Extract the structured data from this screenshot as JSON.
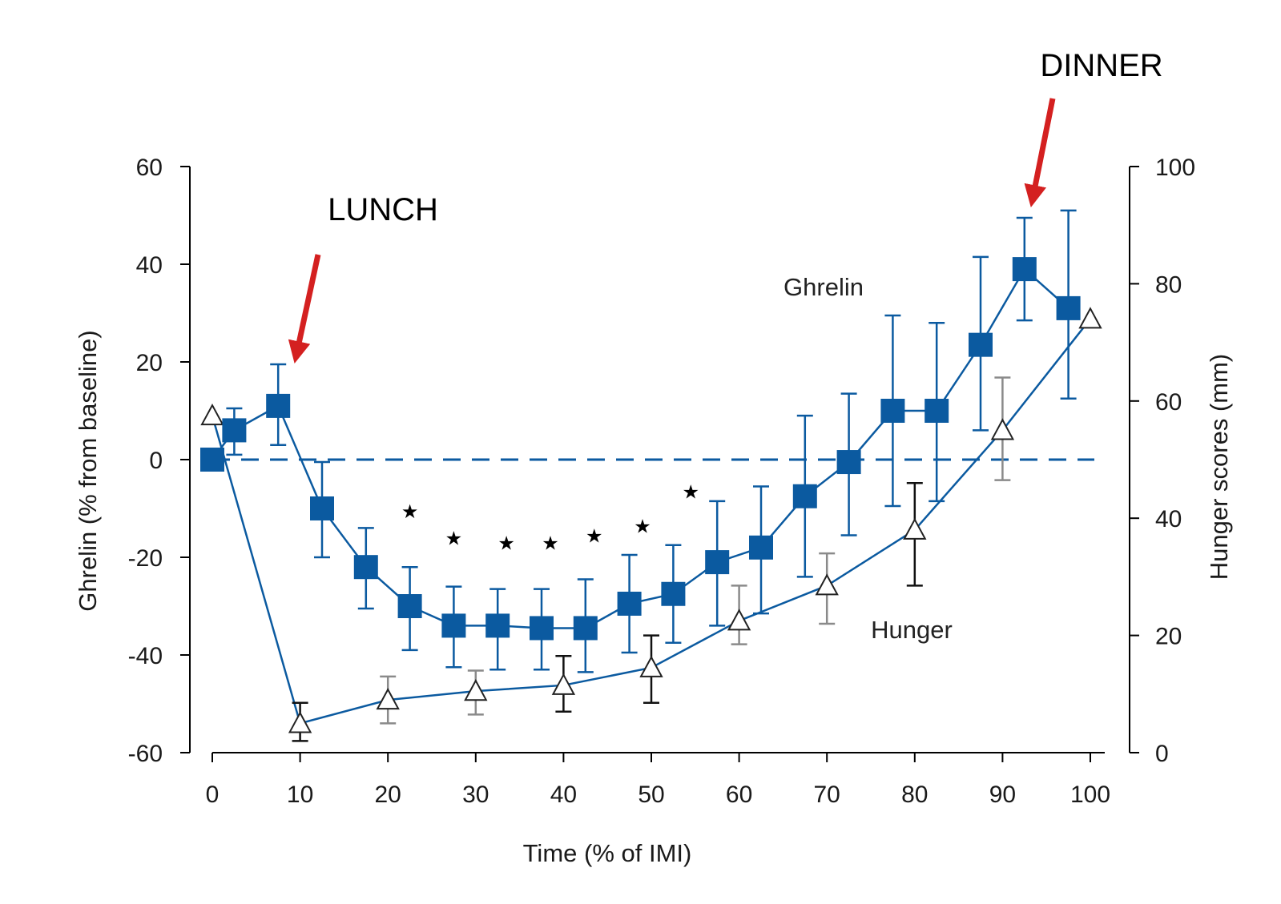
{
  "chart_data": {
    "type": "line",
    "xlabel": "Time (% of IMI)",
    "ylabel_left": "Ghrelin (% from baseline)",
    "ylabel_right": "Hunger scores (mm)",
    "x_ticks": [
      "0",
      "10",
      "20",
      "30",
      "40",
      "50",
      "60",
      "70",
      "80",
      "90",
      "100"
    ],
    "y_left_ticks": [
      "60",
      "40",
      "20",
      "0",
      "-20",
      "-40",
      "-60"
    ],
    "y_right_ticks": [
      "100",
      "80",
      "60",
      "40",
      "20",
      "0"
    ],
    "xlim": [
      0,
      100
    ],
    "ylim_left": [
      -60,
      60
    ],
    "ylim_right": [
      0,
      100
    ],
    "baseline_dashed": 0,
    "series": [
      {
        "name": "Ghrelin",
        "axis": "left",
        "marker": "filled-square",
        "color": "#0b5aa0",
        "x": [
          0,
          2.5,
          7.5,
          12.5,
          17.5,
          22.5,
          27.5,
          32.5,
          37.5,
          42.5,
          47.5,
          52.5,
          57.5,
          62.5,
          67.5,
          72.5,
          77.5,
          82.5,
          87.5,
          92.5,
          97.5
        ],
        "y": [
          0,
          6,
          11,
          -10,
          -22,
          -30,
          -34,
          -34,
          -34.5,
          -34.5,
          -29.5,
          -27.5,
          -21,
          -18,
          -7.5,
          -0.5,
          10,
          10,
          23.5,
          39,
          31
        ],
        "err_high": [
          0,
          10.5,
          19.5,
          -0.5,
          -14,
          -22,
          -26,
          -26.5,
          -26.5,
          -24.5,
          -19.5,
          -17.5,
          -8.5,
          -5.5,
          9,
          13.5,
          29.5,
          28,
          41.5,
          49.5,
          51
        ],
        "err_low": [
          0,
          1,
          3,
          -20,
          -30.5,
          -39,
          -42.5,
          -43,
          -43,
          -43.5,
          -39.5,
          -37.5,
          -34,
          -31.5,
          -24,
          -15.5,
          -9.5,
          -8.5,
          6,
          28.5,
          12.5
        ]
      },
      {
        "name": "Hunger",
        "axis": "right",
        "marker": "open-triangle",
        "color": "#0b5aa0",
        "x": [
          0,
          10,
          20,
          30,
          40,
          50,
          60,
          70,
          80,
          90,
          100
        ],
        "y": [
          57.5,
          5,
          9,
          10.5,
          11.5,
          14.5,
          22.5,
          28.5,
          38,
          55,
          74
        ],
        "err_high": [
          57.5,
          8.5,
          13,
          14,
          16.5,
          20,
          28.5,
          34,
          46,
          64,
          74
        ],
        "err_low": [
          57.5,
          2,
          5,
          6.5,
          7,
          8.5,
          18.5,
          22,
          28.5,
          46.5,
          74
        ]
      }
    ],
    "significance_markers": {
      "symbol": "★",
      "x": [
        22.5,
        27.5,
        33.5,
        38.5,
        43.5,
        49,
        54.5
      ],
      "y_left": [
        -10.5,
        -16,
        -17,
        -17,
        -15.5,
        -13.5,
        -6.5
      ]
    },
    "annotations": [
      {
        "text": "LUNCH",
        "color": "#d42020"
      },
      {
        "text": "DINNER",
        "color": "#d42020"
      }
    ],
    "series_labels": [
      "Ghrelin",
      "Hunger"
    ]
  }
}
